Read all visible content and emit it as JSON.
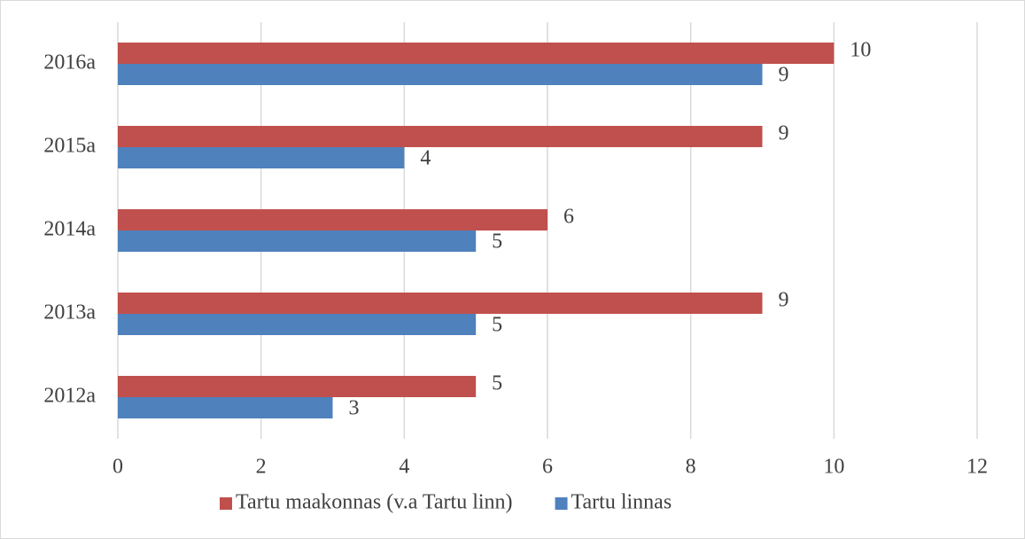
{
  "chart_data": {
    "type": "bar",
    "orientation": "horizontal",
    "categories": [
      "2016a",
      "2015a",
      "2014a",
      "2013a",
      "2012a"
    ],
    "series": [
      {
        "name": "Tartu maakonnas (v.a Tartu linn)",
        "color": "#c0504d",
        "values": [
          10,
          9,
          6,
          9,
          5
        ]
      },
      {
        "name": "Tartu linnas",
        "color": "#4f81bd",
        "values": [
          9,
          4,
          5,
          5,
          3
        ]
      }
    ],
    "xlim": [
      0,
      12
    ],
    "xticks": [
      0,
      2,
      4,
      6,
      8,
      10,
      12
    ],
    "grid": true,
    "legend": "bottom"
  }
}
